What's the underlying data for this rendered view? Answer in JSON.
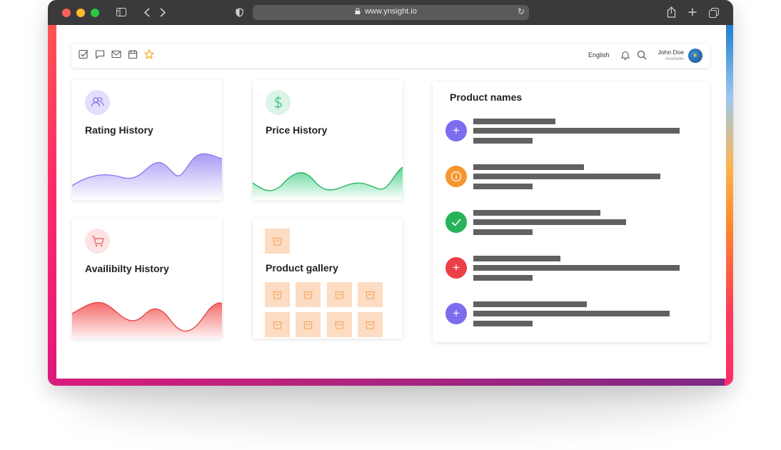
{
  "browser": {
    "url": "www.ynsight.io"
  },
  "topbar": {
    "language": "English",
    "user_name": "John Doe",
    "user_status": "Available",
    "left_icons": [
      "checkbox-icon",
      "chat-icon",
      "mail-icon",
      "calendar-icon",
      "star-icon"
    ]
  },
  "cards": {
    "rating": {
      "title": "Rating History",
      "icon": "users-icon",
      "color": "#9b8cf0"
    },
    "price": {
      "title": "Price History",
      "icon": "dollar-icon",
      "color": "#3cc47c"
    },
    "availability": {
      "title": "Availibilty History",
      "icon": "cart-icon",
      "color": "#f05a5a"
    },
    "gallery": {
      "title": "Product gallery",
      "icon": "bag-icon",
      "color": "#f5a25a"
    }
  },
  "products": {
    "title": "Product names",
    "items": [
      {
        "icon": "plus-icon",
        "color": "#7b6cf0"
      },
      {
        "icon": "info-icon",
        "color": "#f7952f"
      },
      {
        "icon": "check-icon",
        "color": "#27b35a"
      },
      {
        "icon": "plus-icon",
        "color": "#ec3f47"
      },
      {
        "icon": "plus-icon",
        "color": "#7b6cf0"
      }
    ]
  }
}
